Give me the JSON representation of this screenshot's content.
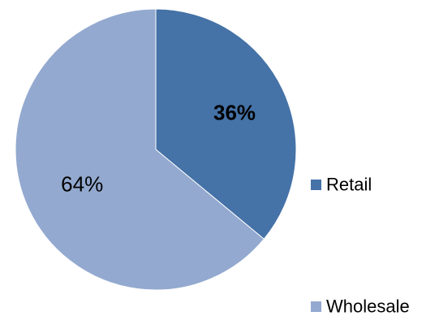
{
  "chart_data": {
    "type": "pie",
    "title": "",
    "slices": [
      {
        "name": "Retail",
        "value": 36,
        "label": "36%",
        "color": "#4572a7",
        "label_bold": true
      },
      {
        "name": "Wholesale",
        "value": 64,
        "label": "64%",
        "color": "#93a9cf",
        "label_bold": false
      }
    ],
    "start_angle_deg": 0,
    "direction": "clockwise",
    "legend": {
      "position": "right",
      "entries": [
        "Retail",
        "Wholesale"
      ]
    }
  }
}
